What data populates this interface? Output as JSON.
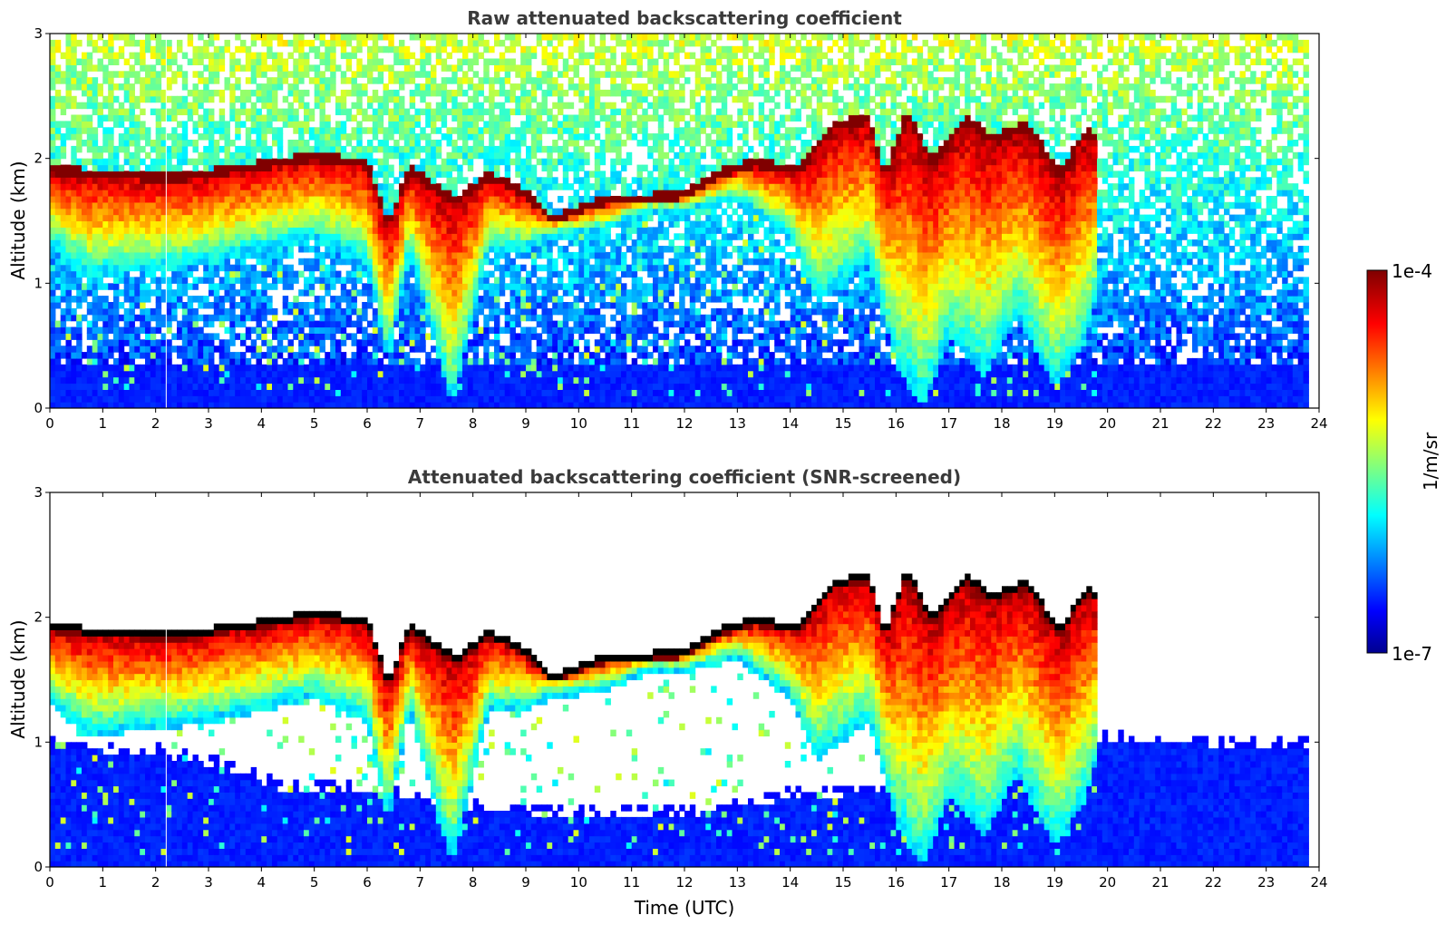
{
  "chart_data": [
    {
      "type": "heatmap",
      "title": "Raw attenuated backscattering coefficient",
      "ylabel": "Altitude (km)",
      "xlabel": "",
      "xlim": [
        0,
        24
      ],
      "ylim": [
        0,
        3
      ],
      "xticks": [
        "0",
        "1",
        "2",
        "3",
        "4",
        "5",
        "6",
        "7",
        "8",
        "9",
        "10",
        "11",
        "12",
        "13",
        "14",
        "15",
        "16",
        "17",
        "18",
        "19",
        "20",
        "21",
        "22",
        "23",
        "24"
      ],
      "yticks": [
        "0",
        "1",
        "2",
        "3"
      ],
      "data_extent_hours": [
        0,
        23.8
      ],
      "cloud_top_km": [
        [
          0,
          1.95
        ],
        [
          0.7,
          1.92
        ],
        [
          1.5,
          1.9
        ],
        [
          2.3,
          1.88
        ],
        [
          3,
          1.92
        ],
        [
          4,
          1.98
        ],
        [
          5,
          2.05
        ],
        [
          6,
          2.0
        ],
        [
          6.4,
          1.5
        ],
        [
          6.8,
          1.95
        ],
        [
          7.3,
          1.8
        ],
        [
          7.7,
          1.7
        ],
        [
          8.3,
          1.9
        ],
        [
          9,
          1.75
        ],
        [
          9.5,
          1.55
        ],
        [
          10.5,
          1.7
        ],
        [
          11.3,
          1.72
        ],
        [
          12,
          1.75
        ],
        [
          12.7,
          1.92
        ],
        [
          13.3,
          2.0
        ],
        [
          14.2,
          1.95
        ],
        [
          14.8,
          2.3
        ],
        [
          15.5,
          2.35
        ],
        [
          15.8,
          1.9
        ],
        [
          16.2,
          2.4
        ],
        [
          16.7,
          2.0
        ],
        [
          17.3,
          2.35
        ],
        [
          17.8,
          2.2
        ],
        [
          18.5,
          2.3
        ],
        [
          19.1,
          1.9
        ],
        [
          19.6,
          2.25
        ],
        [
          19.8,
          2.2
        ]
      ],
      "cloud_base_km": [
        [
          0,
          1.35
        ],
        [
          0.7,
          1.1
        ],
        [
          2,
          1.15
        ],
        [
          3,
          1.2
        ],
        [
          4,
          1.3
        ],
        [
          5,
          1.4
        ],
        [
          6,
          1.2
        ],
        [
          6.4,
          0.4
        ],
        [
          6.8,
          1.3
        ],
        [
          7.6,
          0.05
        ],
        [
          8.3,
          1.3
        ],
        [
          9,
          1.3
        ],
        [
          9.5,
          1.4
        ],
        [
          10.5,
          1.45
        ],
        [
          11.3,
          1.6
        ],
        [
          12,
          1.6
        ],
        [
          13,
          1.7
        ],
        [
          14,
          1.4
        ],
        [
          14.5,
          0.9
        ],
        [
          15.5,
          1.2
        ],
        [
          16,
          0.4
        ],
        [
          16.5,
          0.05
        ],
        [
          17,
          0.6
        ],
        [
          17.7,
          0.3
        ],
        [
          18.3,
          0.8
        ],
        [
          19,
          0.2
        ],
        [
          19.6,
          0.6
        ],
        [
          19.8,
          0.9
        ]
      ]
    },
    {
      "type": "heatmap",
      "title": "Attenuated backscattering coefficient (SNR-screened)",
      "ylabel": "Altitude (km)",
      "xlabel": "Time (UTC)",
      "xlim": [
        0,
        24
      ],
      "ylim": [
        0,
        3
      ],
      "xticks": [
        "0",
        "1",
        "2",
        "3",
        "4",
        "5",
        "6",
        "7",
        "8",
        "9",
        "10",
        "11",
        "12",
        "13",
        "14",
        "15",
        "16",
        "17",
        "18",
        "19",
        "20",
        "21",
        "22",
        "23",
        "24"
      ],
      "yticks": [
        "0",
        "1",
        "2",
        "3"
      ],
      "screened_boundary_layer_top_km": [
        [
          0,
          0.95
        ],
        [
          2,
          0.9
        ],
        [
          3.2,
          0.8
        ],
        [
          4.5,
          0.6
        ],
        [
          6,
          0.6
        ],
        [
          8,
          0.45
        ],
        [
          10,
          0.4
        ],
        [
          12,
          0.4
        ],
        [
          14,
          0.55
        ],
        [
          16,
          0.6
        ],
        [
          18,
          0.85
        ],
        [
          20,
          1.0
        ],
        [
          23.8,
          0.95
        ]
      ]
    }
  ],
  "colorbar": {
    "label": "1/m/sr",
    "min_label": "1e-7",
    "max_label": "1e-4",
    "scale": "log",
    "colormap": "jet",
    "min": 1e-07,
    "max": 0.0001
  },
  "colors": {
    "cloud_top_screened": "#000000",
    "axis": "#000000",
    "title": "#3a3a3a"
  }
}
